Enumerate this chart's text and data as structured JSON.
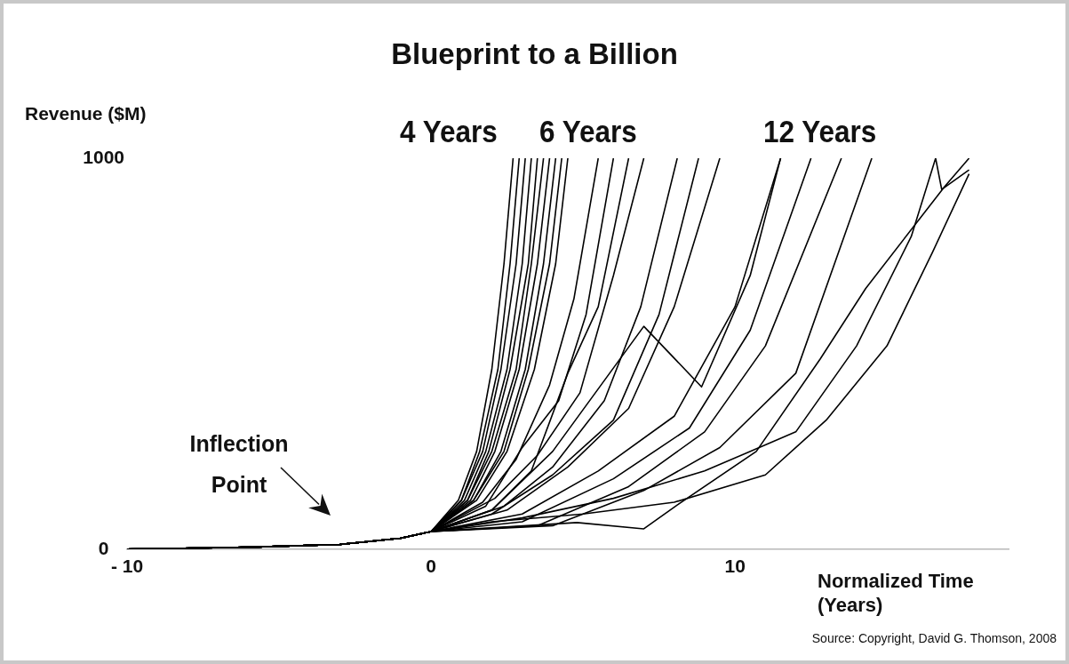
{
  "chart_data": {
    "type": "line",
    "title": "Blueprint to a Billion",
    "ylabel": "Revenue ($M)",
    "xlabel": "Normalized Time (Years)",
    "xlim": [
      -10,
      19
    ],
    "xticks": [
      {
        "value": -10,
        "label": "- 10"
      },
      0,
      10
    ],
    "ylim": [
      0,
      1000
    ],
    "yticks": [
      0,
      1000
    ],
    "grid": false,
    "legend": false,
    "annotations": [
      "4 Years",
      "6 Years",
      "12 Years",
      "Source: Copyright, David G. Thomson, 2008",
      "Inflection Point"
    ],
    "series": [
      {
        "color": "#000000",
        "x": [
          -10,
          -6,
          -3,
          -1,
          0,
          0.9,
          1.5,
          2.0,
          2.4,
          2.7
        ],
        "values": [
          0,
          5,
          12,
          28,
          45,
          125,
          250,
          460,
          730,
          1000
        ]
      },
      {
        "color": "#000000",
        "x": [
          -10,
          -6,
          -3,
          -1,
          0,
          1.0,
          1.6,
          2.2,
          2.6,
          2.9
        ],
        "values": [
          0,
          5,
          12,
          28,
          45,
          125,
          250,
          460,
          730,
          1000
        ]
      },
      {
        "color": "#000000",
        "x": [
          -10,
          -6,
          -3,
          -1,
          0,
          1.0,
          1.7,
          2.3,
          2.8,
          3.1
        ],
        "values": [
          0,
          5,
          12,
          28,
          45,
          125,
          250,
          460,
          730,
          1000
        ]
      },
      {
        "color": "#000000",
        "x": [
          -10,
          -6,
          -3,
          -1,
          0,
          1.1,
          1.8,
          2.5,
          3.0,
          3.3
        ],
        "values": [
          0,
          5,
          12,
          28,
          45,
          125,
          250,
          460,
          730,
          1000
        ]
      },
      {
        "color": "#000000",
        "x": [
          -10,
          -6,
          -3,
          -1,
          0,
          1.2,
          1.9,
          2.6,
          3.2,
          3.5
        ],
        "values": [
          0,
          5,
          12,
          28,
          45,
          125,
          250,
          460,
          730,
          1000
        ]
      },
      {
        "color": "#000000",
        "x": [
          -10,
          -6,
          -3,
          -1,
          0,
          1.2,
          2.0,
          2.8,
          3.3,
          3.7
        ],
        "values": [
          0,
          5,
          12,
          28,
          45,
          125,
          250,
          460,
          730,
          1000
        ]
      },
      {
        "color": "#000000",
        "x": [
          -10,
          -6,
          -3,
          -1,
          0,
          1.3,
          2.1,
          2.9,
          3.5,
          3.9
        ],
        "values": [
          0,
          5,
          12,
          28,
          45,
          125,
          250,
          460,
          730,
          1000
        ]
      },
      {
        "color": "#000000",
        "x": [
          -10,
          -6,
          -3,
          -1,
          0,
          1.4,
          2.3,
          3.1,
          3.7,
          4.1
        ],
        "values": [
          0,
          5,
          12,
          28,
          45,
          125,
          250,
          460,
          730,
          1000
        ]
      },
      {
        "color": "#000000",
        "x": [
          -10,
          -6,
          -3,
          -1,
          0,
          1.4,
          2.4,
          3.2,
          3.9,
          4.3
        ],
        "values": [
          0,
          5,
          12,
          28,
          45,
          125,
          250,
          460,
          730,
          1000
        ]
      },
      {
        "color": "#000000",
        "x": [
          -10,
          -6,
          -3,
          -1,
          0,
          1.5,
          2.5,
          3.4,
          4.1,
          4.5
        ],
        "values": [
          0,
          5,
          12,
          28,
          45,
          125,
          250,
          460,
          730,
          1000
        ]
      },
      {
        "color": "#000000",
        "x": [
          -10,
          -6,
          -3,
          -1,
          0,
          1.7,
          2.8,
          3.9,
          4.7,
          5.5
        ],
        "values": [
          0,
          5,
          12,
          28,
          45,
          120,
          230,
          420,
          640,
          1000
        ]
      },
      {
        "color": "#000000",
        "x": [
          -10,
          -6,
          -3,
          -1,
          0,
          1.8,
          3.0,
          4.2,
          5.1,
          6.0
        ],
        "values": [
          0,
          5,
          12,
          28,
          45,
          110,
          260,
          380,
          600,
          1000
        ]
      },
      {
        "color": "#000000",
        "x": [
          -10,
          -6,
          -3,
          -1,
          0,
          2.0,
          3.3,
          4.5,
          5.5,
          6.5
        ],
        "values": [
          0,
          5,
          12,
          28,
          45,
          100,
          200,
          450,
          620,
          1000
        ]
      },
      {
        "color": "#000000",
        "x": [
          -10,
          -6,
          -3,
          -1,
          0,
          2.1,
          3.5,
          4.9,
          6.0,
          7.0
        ],
        "values": [
          0,
          5,
          12,
          28,
          45,
          130,
          240,
          400,
          700,
          1000
        ]
      },
      {
        "color": "#000000",
        "x": [
          -10,
          -6,
          -3,
          -1,
          0,
          2.4,
          4.0,
          5.7,
          6.9,
          8.1
        ],
        "values": [
          0,
          5,
          12,
          28,
          45,
          110,
          210,
          380,
          620,
          1000
        ]
      },
      {
        "color": "#000000",
        "x": [
          -10,
          -6,
          -3,
          -1,
          0,
          2.0,
          4.0,
          6.0,
          7.5,
          8.8
        ],
        "values": [
          0,
          5,
          12,
          28,
          45,
          90,
          190,
          330,
          600,
          1000
        ]
      },
      {
        "color": "#000000",
        "x": [
          -10,
          -6,
          -3,
          -1,
          0,
          2.5,
          4.5,
          6.5,
          8.0,
          9.5
        ],
        "values": [
          0,
          5,
          12,
          28,
          45,
          100,
          210,
          360,
          620,
          1000
        ]
      },
      {
        "color": "#000000",
        "x": [
          -10,
          -6,
          -3,
          -1,
          0,
          2.0,
          4.0,
          7.0,
          8.9,
          10.5,
          11.5
        ],
        "values": [
          0,
          5,
          12,
          28,
          45,
          100,
          250,
          570,
          415,
          700,
          1000
        ]
      },
      {
        "color": "#000000",
        "x": [
          -10,
          -6,
          -3,
          -1,
          0,
          3.0,
          5.5,
          8.0,
          10.0,
          11.5
        ],
        "values": [
          0,
          5,
          12,
          28,
          45,
          90,
          200,
          340,
          620,
          1000
        ]
      },
      {
        "color": "#000000",
        "x": [
          -10,
          -6,
          -3,
          -1,
          0,
          3.0,
          6.0,
          8.5,
          10.5,
          12.5
        ],
        "values": [
          0,
          5,
          12,
          28,
          45,
          70,
          180,
          310,
          560,
          1000
        ]
      },
      {
        "color": "#000000",
        "x": [
          -10,
          -6,
          -3,
          -1,
          0,
          3.5,
          6.5,
          9.0,
          11.0,
          13.5
        ],
        "values": [
          0,
          5,
          12,
          28,
          45,
          60,
          160,
          300,
          520,
          1000
        ]
      },
      {
        "color": "#000000",
        "x": [
          -10,
          -6,
          -3,
          -1,
          0,
          4.0,
          7.0,
          9.5,
          12.0,
          14.5
        ],
        "values": [
          0,
          5,
          12,
          28,
          45,
          60,
          150,
          260,
          450,
          1000
        ]
      },
      {
        "color": "#000000",
        "x": [
          -10,
          -6,
          -3,
          -1,
          0,
          4.8,
          7.0,
          8.1,
          10.7,
          12.8,
          14.3,
          16.9,
          17.7
        ],
        "values": [
          0,
          5,
          12,
          28,
          45,
          68,
          52,
          113,
          250,
          486,
          667,
          928,
          1000
        ]
      },
      {
        "color": "#000000",
        "x": [
          -10,
          -6,
          -3,
          -1,
          0,
          2.0,
          5.0,
          8.0,
          11.0,
          13.0,
          15.0,
          16.5,
          17.7
        ],
        "values": [
          0,
          5,
          12,
          28,
          45,
          70,
          90,
          120,
          190,
          330,
          520,
          760,
          960
        ]
      },
      {
        "color": "#000000",
        "x": [
          -10,
          -6,
          -3,
          -1,
          0,
          3.0,
          6.0,
          9.0,
          12.0,
          14.0,
          15.8,
          16.6,
          16.8,
          17.7
        ],
        "values": [
          0,
          5,
          12,
          28,
          45,
          80,
          130,
          200,
          300,
          520,
          800,
          1000,
          920,
          970
        ]
      }
    ]
  }
}
